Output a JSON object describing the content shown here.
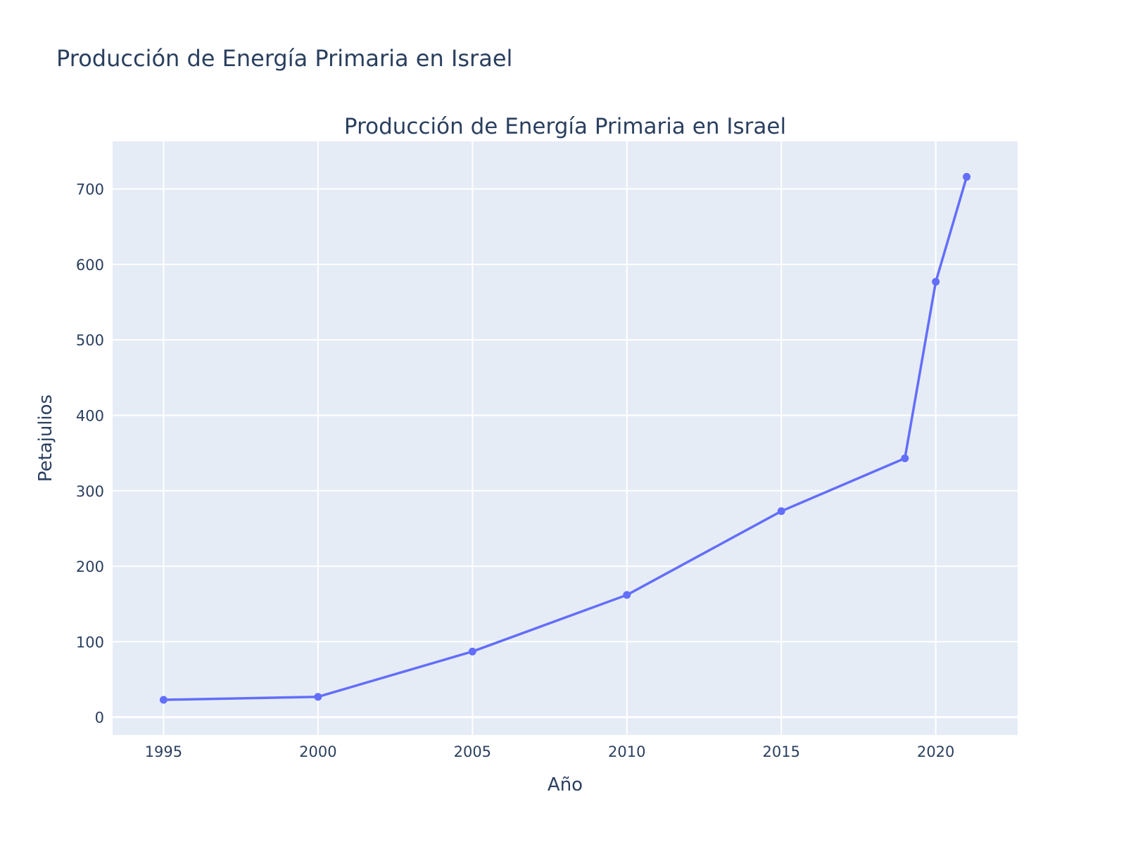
{
  "page": {
    "title": "Producción de Energía Primaria en Israel"
  },
  "chart_data": {
    "type": "line",
    "title": "Producción de Energía Primaria en Israel",
    "xlabel": "Año",
    "ylabel": "Petajulios",
    "x": [
      1995,
      2000,
      2005,
      2010,
      2015,
      2019,
      2020,
      2021
    ],
    "series": [
      {
        "values": [
          23,
          27,
          87,
          162,
          273,
          343,
          577,
          716
        ]
      }
    ],
    "xlim": [
      1993.35,
      2022.65
    ],
    "ylim": [
      -23.6,
      763
    ],
    "xticks": [
      1995,
      2000,
      2005,
      2010,
      2015,
      2020
    ],
    "yticks": [
      0,
      100,
      200,
      300,
      400,
      500,
      600,
      700
    ],
    "grid": true,
    "mode": "lines+markers",
    "colors": {
      "plot_background": "#e5ecf6",
      "grid": "#ffffff",
      "line": "#636efa",
      "text": "#2a3f5f"
    }
  }
}
